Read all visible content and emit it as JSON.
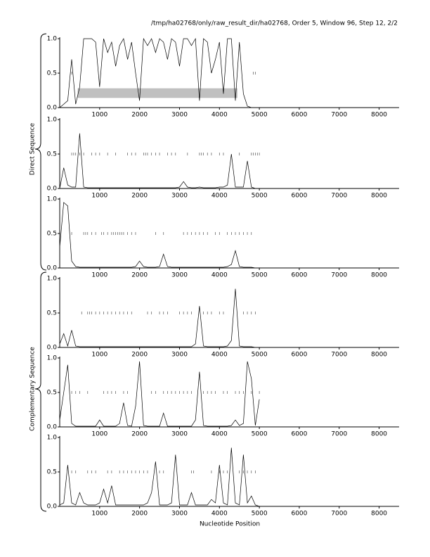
{
  "header": "/tmp/ha02768/only/raw_result_dir/ha02768, Order 5, Window 96, Step 12, 2/2",
  "x_label": "Nucleotide Position",
  "group_labels": [
    "Direct Sequence",
    "Complementary Sequence"
  ],
  "chart_data": [
    {
      "type": "line",
      "color": "#000000",
      "x": [
        0,
        100,
        200,
        300,
        400,
        500,
        600,
        700,
        800,
        900,
        1000,
        1100,
        1200,
        1300,
        1400,
        1500,
        1600,
        1700,
        1800,
        1900,
        2000,
        2100,
        2200,
        2300,
        2400,
        2500,
        2600,
        2700,
        2800,
        2900,
        3000,
        3100,
        3200,
        3300,
        3400,
        3500,
        3600,
        3700,
        3800,
        3900,
        4000,
        4100,
        4200,
        4300,
        4400,
        4500,
        4600,
        4700,
        4800,
        4900,
        5000
      ],
      "values": [
        0,
        0.05,
        0.1,
        0.7,
        0.05,
        0.3,
        1.0,
        1.0,
        1.0,
        0.95,
        0.3,
        1.0,
        0.8,
        0.95,
        0.6,
        0.9,
        1.0,
        0.7,
        0.95,
        0.5,
        0.1,
        1.0,
        0.9,
        1.0,
        0.8,
        1.0,
        0.95,
        0.7,
        1.0,
        0.95,
        0.6,
        1.0,
        1.0,
        0.9,
        1.0,
        0.1,
        1.0,
        0.95,
        0.5,
        0.7,
        0.95,
        0.2,
        1.0,
        1.0,
        0.1,
        0.95,
        0.2,
        0.02,
        0,
        0,
        0
      ],
      "markers": {
        "x": [
          300,
          4850,
          4900
        ],
        "y": 0.5
      },
      "band": {
        "x": [
          450,
          4450
        ],
        "y": [
          0.14,
          0.28
        ],
        "color": "#c0c0c0"
      },
      "xlim": [
        0,
        8500
      ],
      "ylim": [
        0,
        1
      ],
      "xticks": [
        1000,
        2000,
        3000,
        4000,
        5000,
        6000,
        7000,
        8000
      ],
      "yticks": [
        {
          "value": 0,
          "label": "0.0"
        },
        0.5,
        {
          "value": 1,
          "label": "1.0"
        }
      ]
    },
    {
      "type": "line",
      "color": "#000000",
      "x": [
        0,
        100,
        200,
        300,
        400,
        500,
        600,
        700,
        800,
        900,
        1000,
        1100,
        1200,
        1300,
        1400,
        1500,
        1600,
        1700,
        1800,
        1900,
        2000,
        2100,
        2200,
        2300,
        2400,
        2500,
        2600,
        2700,
        2800,
        2900,
        3000,
        3100,
        3200,
        3300,
        3400,
        3500,
        3600,
        3700,
        3800,
        3900,
        4000,
        4100,
        4200,
        4300,
        4400,
        4500,
        4600,
        4700,
        4800,
        4900,
        5000
      ],
      "values": [
        0,
        0.3,
        0.05,
        0.02,
        0.02,
        0.8,
        0.02,
        0.01,
        0.01,
        0.01,
        0.01,
        0.01,
        0.01,
        0.01,
        0.01,
        0.01,
        0.01,
        0.01,
        0.01,
        0.01,
        0.01,
        0.01,
        0.01,
        0.01,
        0.01,
        0.01,
        0.01,
        0.01,
        0.01,
        0.01,
        0.02,
        0.1,
        0.02,
        0.01,
        0.01,
        0.02,
        0.01,
        0.01,
        0.01,
        0.01,
        0.02,
        0.02,
        0.05,
        0.5,
        0.02,
        0.02,
        0.02,
        0.4,
        0.02,
        0,
        0
      ],
      "markers": {
        "x": [
          300,
          350,
          400,
          500,
          600,
          800,
          900,
          1000,
          1200,
          1400,
          1700,
          1800,
          1900,
          2100,
          2150,
          2200,
          2300,
          2400,
          2500,
          2700,
          2800,
          2900,
          3200,
          3500,
          3550,
          3600,
          3700,
          3800,
          4000,
          4100,
          4500,
          4800,
          4850,
          4900,
          4950,
          5000
        ],
        "y": 0.5
      },
      "xlim": [
        0,
        8500
      ],
      "ylim": [
        0,
        1
      ],
      "xticks": [
        1000,
        2000,
        3000,
        4000,
        5000,
        6000,
        7000,
        8000
      ],
      "yticks": [
        {
          "value": 0,
          "label": "0.0"
        },
        0.5,
        {
          "value": 1,
          "label": "1.0"
        }
      ]
    },
    {
      "type": "line",
      "color": "#000000",
      "x": [
        0,
        100,
        200,
        300,
        400,
        500,
        600,
        700,
        800,
        900,
        1000,
        1100,
        1200,
        1300,
        1400,
        1500,
        1600,
        1700,
        1800,
        1900,
        2000,
        2100,
        2200,
        2300,
        2400,
        2500,
        2600,
        2700,
        2800,
        2900,
        3000,
        3100,
        3200,
        3300,
        3400,
        3500,
        3600,
        3700,
        3800,
        3900,
        4000,
        4100,
        4200,
        4300,
        4400,
        4500,
        4600,
        4700,
        4800,
        4900,
        5000
      ],
      "values": [
        0.3,
        0.95,
        0.9,
        0.1,
        0.02,
        0.01,
        0.01,
        0.01,
        0.01,
        0.01,
        0.01,
        0.01,
        0.01,
        0.01,
        0.01,
        0.01,
        0.01,
        0.01,
        0.01,
        0.02,
        0.1,
        0.02,
        0.01,
        0.01,
        0.01,
        0.02,
        0.2,
        0.02,
        0.01,
        0.01,
        0.01,
        0.01,
        0.01,
        0.01,
        0.01,
        0.01,
        0.01,
        0.01,
        0.01,
        0.01,
        0.01,
        0.01,
        0.02,
        0.05,
        0.25,
        0.02,
        0.01,
        0.01,
        0.01,
        0,
        0
      ],
      "markers": {
        "x": [
          300,
          600,
          650,
          700,
          800,
          900,
          1050,
          1100,
          1200,
          1300,
          1350,
          1400,
          1450,
          1500,
          1550,
          1600,
          1700,
          1800,
          1900,
          2400,
          2600,
          3100,
          3200,
          3300,
          3400,
          3500,
          3600,
          3700,
          3900,
          4000,
          4200,
          4300,
          4400,
          4500,
          4600,
          4700,
          4800
        ],
        "y": 0.5
      },
      "xlim": [
        0,
        8500
      ],
      "ylim": [
        0,
        1
      ],
      "xticks": [
        1000,
        2000,
        3000,
        4000,
        5000,
        6000,
        7000,
        8000
      ],
      "yticks": [
        {
          "value": 0,
          "label": "0.0"
        },
        0.5,
        {
          "value": 1,
          "label": "1.0"
        }
      ]
    },
    {
      "type": "line",
      "color": "#000000",
      "x": [
        0,
        100,
        200,
        300,
        400,
        500,
        600,
        700,
        800,
        900,
        1000,
        1100,
        1200,
        1300,
        1400,
        1500,
        1600,
        1700,
        1800,
        1900,
        2000,
        2100,
        2200,
        2300,
        2400,
        2500,
        2600,
        2700,
        2800,
        2900,
        3000,
        3100,
        3200,
        3300,
        3400,
        3500,
        3600,
        3700,
        3800,
        3900,
        4000,
        4100,
        4200,
        4300,
        4400,
        4500,
        4600,
        4700,
        4800,
        4900,
        5000
      ],
      "values": [
        0.05,
        0.2,
        0.02,
        0.25,
        0.02,
        0.01,
        0.01,
        0.01,
        0.01,
        0.01,
        0.01,
        0.01,
        0.01,
        0.01,
        0.01,
        0.01,
        0.01,
        0.01,
        0.01,
        0.01,
        0.01,
        0.01,
        0.01,
        0.01,
        0.01,
        0.01,
        0.01,
        0.01,
        0.01,
        0.01,
        0.01,
        0.01,
        0.01,
        0.01,
        0.05,
        0.6,
        0.02,
        0.01,
        0.01,
        0.01,
        0.01,
        0.01,
        0.02,
        0.1,
        0.85,
        0.02,
        0.01,
        0.01,
        0.01,
        0,
        0
      ],
      "markers": {
        "x": [
          550,
          700,
          750,
          800,
          900,
          1000,
          1100,
          1200,
          1300,
          1400,
          1500,
          1600,
          1700,
          1800,
          2200,
          2300,
          2500,
          2600,
          2700,
          3000,
          3100,
          3200,
          3300,
          3600,
          3700,
          3800,
          4000,
          4100,
          4600,
          4700,
          4800,
          4900
        ],
        "y": 0.5
      },
      "xlim": [
        0,
        8500
      ],
      "ylim": [
        0,
        1
      ],
      "xticks": [
        1000,
        2000,
        3000,
        4000,
        5000,
        6000,
        7000,
        8000
      ],
      "yticks": [
        {
          "value": 0,
          "label": "0.0"
        },
        0.5,
        {
          "value": 1,
          "label": "1.0"
        }
      ]
    },
    {
      "type": "line",
      "color": "#000000",
      "x": [
        0,
        100,
        200,
        300,
        400,
        500,
        600,
        700,
        800,
        900,
        1000,
        1100,
        1200,
        1300,
        1400,
        1500,
        1600,
        1700,
        1800,
        1900,
        2000,
        2100,
        2200,
        2300,
        2400,
        2500,
        2600,
        2700,
        2800,
        2900,
        3000,
        3100,
        3200,
        3300,
        3400,
        3500,
        3600,
        3700,
        3800,
        3900,
        4000,
        4100,
        4200,
        4300,
        4400,
        4500,
        4600,
        4700,
        4800,
        4900,
        5000
      ],
      "values": [
        0.1,
        0.5,
        0.9,
        0.05,
        0.01,
        0.01,
        0.01,
        0.01,
        0.01,
        0.01,
        0.1,
        0.01,
        0.01,
        0.01,
        0.01,
        0.05,
        0.35,
        0.02,
        0.01,
        0.3,
        0.95,
        0.02,
        0.01,
        0.01,
        0.01,
        0.01,
        0.2,
        0.01,
        0.01,
        0.01,
        0.01,
        0.01,
        0.01,
        0.01,
        0.1,
        0.8,
        0.02,
        0.01,
        0.01,
        0.01,
        0.01,
        0.01,
        0.01,
        0.02,
        0.1,
        0.02,
        0.05,
        0.95,
        0.7,
        0.02,
        0.4
      ],
      "markers": {
        "x": [
          300,
          400,
          500,
          700,
          1100,
          1200,
          1300,
          1400,
          1600,
          1700,
          2300,
          2400,
          2600,
          2700,
          2800,
          2900,
          3000,
          3100,
          3200,
          3300,
          3600,
          3700,
          3800,
          3900,
          4100,
          4200,
          4400,
          4500,
          4600,
          4800,
          5000
        ],
        "y": 0.5
      },
      "xlim": [
        0,
        8500
      ],
      "ylim": [
        0,
        1
      ],
      "xticks": [
        1000,
        2000,
        3000,
        4000,
        5000,
        6000,
        7000,
        8000
      ],
      "yticks": [
        {
          "value": 0,
          "label": "0.0"
        },
        0.5,
        {
          "value": 1,
          "label": "1.0"
        }
      ]
    },
    {
      "type": "line",
      "color": "#000000",
      "x": [
        0,
        100,
        200,
        300,
        400,
        500,
        600,
        700,
        800,
        900,
        1000,
        1100,
        1200,
        1300,
        1400,
        1500,
        1600,
        1700,
        1800,
        1900,
        2000,
        2100,
        2200,
        2300,
        2400,
        2500,
        2600,
        2700,
        2800,
        2900,
        3000,
        3100,
        3200,
        3300,
        3400,
        3500,
        3600,
        3700,
        3800,
        3900,
        4000,
        4100,
        4200,
        4300,
        4400,
        4500,
        4600,
        4700,
        4800,
        4900,
        5000
      ],
      "values": [
        0.02,
        0.05,
        0.6,
        0.05,
        0.02,
        0.2,
        0.05,
        0.02,
        0.02,
        0.02,
        0.05,
        0.25,
        0.05,
        0.3,
        0.02,
        0.02,
        0.02,
        0.02,
        0.02,
        0.02,
        0.02,
        0.02,
        0.05,
        0.2,
        0.65,
        0.02,
        0.02,
        0.02,
        0.05,
        0.75,
        0.02,
        0.02,
        0.02,
        0.2,
        0.02,
        0.02,
        0.02,
        0.02,
        0.1,
        0.05,
        0.6,
        0.05,
        0.02,
        0.85,
        0.05,
        0.02,
        0.75,
        0.05,
        0.15,
        0.02,
        0
      ],
      "markers": {
        "x": [
          300,
          400,
          700,
          800,
          900,
          1200,
          1300,
          1500,
          1600,
          1700,
          1800,
          1900,
          2000,
          2100,
          2200,
          2500,
          2600,
          3300,
          3350,
          3800,
          4000,
          4100,
          4200,
          4500,
          4600,
          4700,
          4800,
          4900
        ],
        "y": 0.5
      },
      "xlim": [
        0,
        8500
      ],
      "ylim": [
        0,
        1
      ],
      "xticks": [
        1000,
        2000,
        3000,
        4000,
        5000,
        6000,
        7000,
        8000
      ],
      "yticks": [
        {
          "value": 0,
          "label": "0.0"
        },
        0.5,
        {
          "value": 1,
          "label": "1.0"
        }
      ]
    }
  ]
}
